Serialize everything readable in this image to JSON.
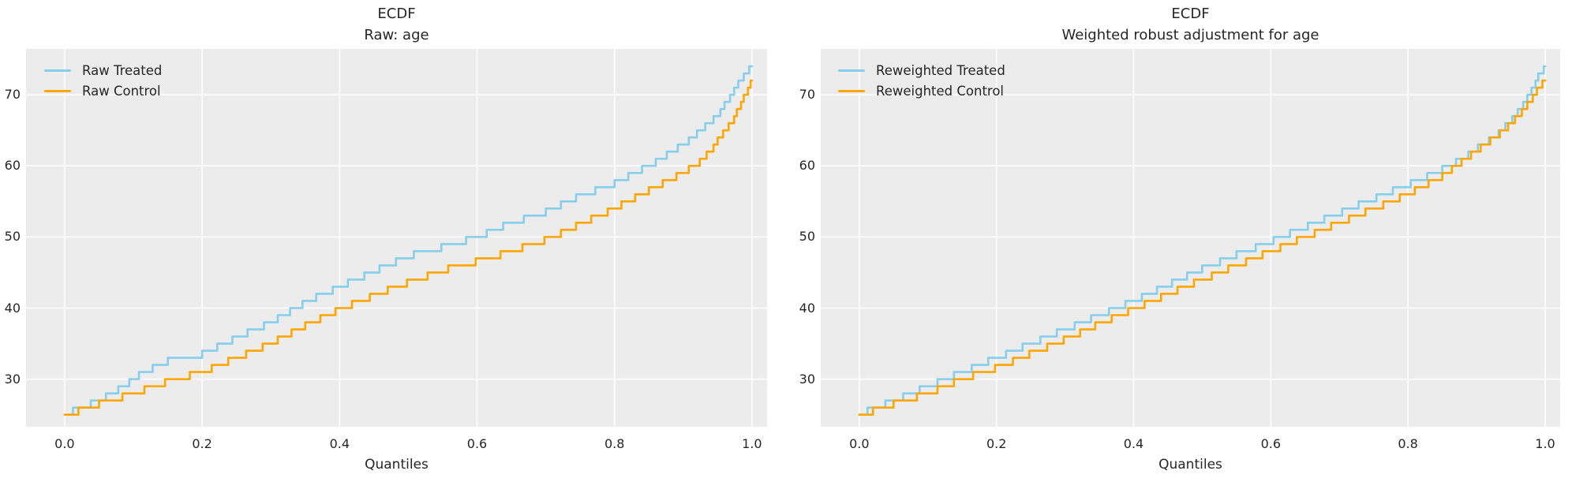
{
  "figure": {
    "background": "#ffffff",
    "panel_background": "#ececec",
    "grid_color": "#ffffff",
    "text_color": "#262626",
    "treated_color": "#87ceeb",
    "control_color": "#ffa500"
  },
  "chart_data": [
    {
      "type": "line",
      "subtype": "quantile-step-ecdf",
      "title": "ECDF",
      "subtitle": "Raw: age",
      "xlabel": "Quantiles",
      "ylabel": "",
      "grid": true,
      "legend_position": "upper left",
      "xlim": [
        -0.0562,
        1.0219
      ],
      "ylim": [
        23.3,
        76.45
      ],
      "xtick_values": [
        0.0,
        0.2,
        0.4,
        0.6,
        0.8,
        1.0
      ],
      "xtick_labels": [
        "0.0",
        "0.2",
        "0.4",
        "0.6",
        "0.8",
        "1.0"
      ],
      "ytick_values": [
        30,
        40,
        50,
        60,
        70
      ],
      "ytick_labels": [
        "30",
        "40",
        "50",
        "60",
        "70"
      ],
      "series": [
        {
          "name": "Raw Treated",
          "color": "#87ceeb",
          "points": [
            [
              0,
              25
            ],
            [
              0.02,
              25.9
            ],
            [
              0.05,
              27
            ],
            [
              0.08,
              28.7
            ],
            [
              0.1,
              30
            ],
            [
              0.115,
              31
            ],
            [
              0.15,
              32.5
            ],
            [
              0.2,
              33.5
            ],
            [
              0.25,
              35.8
            ],
            [
              0.3,
              38
            ],
            [
              0.35,
              40.8
            ],
            [
              0.4,
              43
            ],
            [
              0.45,
              45.2
            ],
            [
              0.5,
              47.3
            ],
            [
              0.55,
              48.6
            ],
            [
              0.6,
              50
            ],
            [
              0.65,
              52
            ],
            [
              0.7,
              53.5
            ],
            [
              0.75,
              55.8
            ],
            [
              0.8,
              57.5
            ],
            [
              0.85,
              60
            ],
            [
              0.9,
              63
            ],
            [
              0.92,
              64.5
            ],
            [
              0.95,
              67
            ],
            [
              0.96,
              68.5
            ],
            [
              0.97,
              70
            ],
            [
              0.98,
              71.5
            ],
            [
              0.99,
              73
            ],
            [
              1,
              74
            ]
          ]
        },
        {
          "name": "Raw Control",
          "color": "#ffa500",
          "points": [
            [
              0,
              25
            ],
            [
              0.035,
              25.9
            ],
            [
              0.05,
              26.5
            ],
            [
              0.1,
              28
            ],
            [
              0.15,
              29.7
            ],
            [
              0.2,
              31
            ],
            [
              0.25,
              33
            ],
            [
              0.3,
              35
            ],
            [
              0.35,
              37.5
            ],
            [
              0.4,
              39.8
            ],
            [
              0.45,
              41.8
            ],
            [
              0.5,
              43.6
            ],
            [
              0.55,
              45.3
            ],
            [
              0.6,
              46.6
            ],
            [
              0.65,
              48
            ],
            [
              0.7,
              49.6
            ],
            [
              0.75,
              51.8
            ],
            [
              0.8,
              54
            ],
            [
              0.85,
              56.5
            ],
            [
              0.9,
              59
            ],
            [
              0.93,
              61
            ],
            [
              0.95,
              63.5
            ],
            [
              0.97,
              66
            ],
            [
              0.98,
              68
            ],
            [
              0.99,
              70
            ],
            [
              1,
              72
            ]
          ]
        }
      ]
    },
    {
      "type": "line",
      "subtype": "quantile-step-ecdf",
      "title": "ECDF",
      "subtitle": "Weighted robust adjustment for age",
      "xlabel": "Quantiles",
      "ylabel": "",
      "grid": true,
      "legend_position": "upper left",
      "xlim": [
        -0.0562,
        1.0219
      ],
      "ylim": [
        23.3,
        76.45
      ],
      "xtick_values": [
        0.0,
        0.2,
        0.4,
        0.6,
        0.8,
        1.0
      ],
      "xtick_labels": [
        "0.0",
        "0.2",
        "0.4",
        "0.6",
        "0.8",
        "1.0"
      ],
      "ytick_values": [
        30,
        40,
        50,
        60,
        70
      ],
      "ytick_labels": [
        "30",
        "40",
        "50",
        "60",
        "70"
      ],
      "series": [
        {
          "name": "Reweighted Treated",
          "color": "#87ceeb",
          "points": [
            [
              0,
              25
            ],
            [
              0.02,
              25.9
            ],
            [
              0.05,
              27
            ],
            [
              0.1,
              29
            ],
            [
              0.15,
              31
            ],
            [
              0.2,
              33
            ],
            [
              0.25,
              35
            ],
            [
              0.3,
              37
            ],
            [
              0.35,
              39
            ],
            [
              0.4,
              41
            ],
            [
              0.45,
              43.3
            ],
            [
              0.5,
              45.5
            ],
            [
              0.55,
              47.5
            ],
            [
              0.6,
              49.4
            ],
            [
              0.65,
              51.4
            ],
            [
              0.7,
              53.4
            ],
            [
              0.75,
              55.4
            ],
            [
              0.8,
              57.4
            ],
            [
              0.85,
              59.5
            ],
            [
              0.88,
              61
            ],
            [
              0.9,
              62.4
            ],
            [
              0.93,
              64.4
            ],
            [
              0.95,
              66.3
            ],
            [
              0.97,
              69
            ],
            [
              0.98,
              70.5
            ],
            [
              0.99,
              72.5
            ],
            [
              1,
              74
            ]
          ]
        },
        {
          "name": "Reweighted Control",
          "color": "#ffa500",
          "points": [
            [
              0,
              25
            ],
            [
              0.035,
              25.9
            ],
            [
              0.05,
              26.5
            ],
            [
              0.1,
              28
            ],
            [
              0.15,
              30
            ],
            [
              0.2,
              31.6
            ],
            [
              0.25,
              33.6
            ],
            [
              0.3,
              35.6
            ],
            [
              0.35,
              37.8
            ],
            [
              0.4,
              39.9
            ],
            [
              0.45,
              42
            ],
            [
              0.5,
              44
            ],
            [
              0.55,
              46
            ],
            [
              0.6,
              48
            ],
            [
              0.65,
              50
            ],
            [
              0.7,
              52
            ],
            [
              0.75,
              54
            ],
            [
              0.8,
              56
            ],
            [
              0.85,
              58.5
            ],
            [
              0.88,
              60.8
            ],
            [
              0.9,
              62.1
            ],
            [
              0.93,
              64.2
            ],
            [
              0.95,
              66
            ],
            [
              0.97,
              68
            ],
            [
              0.98,
              69.3
            ],
            [
              0.99,
              70.8
            ],
            [
              1,
              72
            ]
          ]
        }
      ]
    }
  ]
}
